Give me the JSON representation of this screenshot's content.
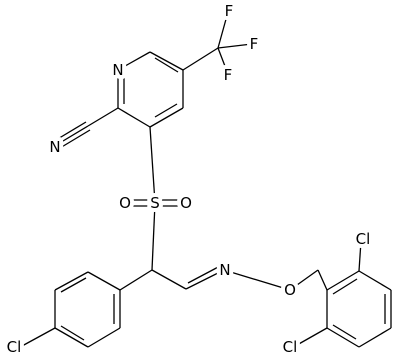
{
  "atoms": [
    {
      "label": "F"
    },
    {
      "label": "F"
    },
    {
      "label": "F"
    },
    {
      "label": "N"
    },
    {
      "label": "N"
    },
    {
      "label": "S"
    },
    {
      "label": "O"
    },
    {
      "label": "O"
    },
    {
      "label": "N"
    },
    {
      "label": "O"
    },
    {
      "label": "Cl"
    },
    {
      "label": "Cl"
    },
    {
      "label": "Cl"
    }
  ]
}
